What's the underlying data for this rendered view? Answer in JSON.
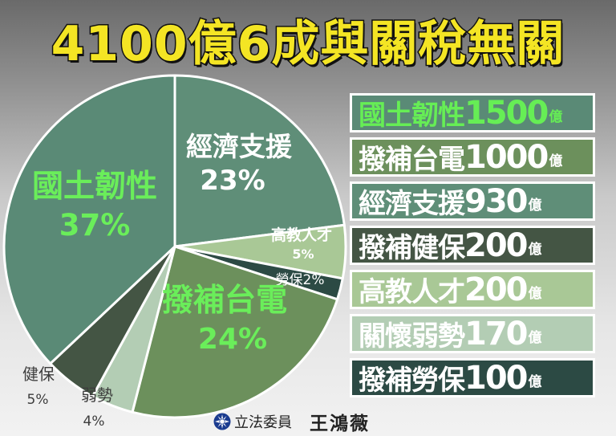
{
  "title": "4100億6成與關稅無關",
  "chart_data": {
    "type": "pie",
    "slices": [
      {
        "name": "經濟支援",
        "percent": 23,
        "percent_label": "23%",
        "color": "#5f8e78"
      },
      {
        "name": "高教人才",
        "percent": 5,
        "percent_label": "5%",
        "color": "#a9c896"
      },
      {
        "name": "勞保",
        "percent": 2,
        "percent_label": "2%",
        "color": "#2c4a44"
      },
      {
        "name": "撥補台電",
        "percent": 24,
        "percent_label": "24%",
        "color": "#6c905c"
      },
      {
        "name": "弱勢",
        "percent": 4,
        "percent_label": "4%",
        "color": "#b3cdb4"
      },
      {
        "name": "健保",
        "percent": 5,
        "percent_label": "5%",
        "color": "#445544"
      },
      {
        "name": "國土韌性",
        "percent": 37,
        "percent_label": "37%",
        "color": "#5a8a76"
      }
    ]
  },
  "legend": [
    {
      "name": "國土韌性",
      "value": "1500",
      "unit": "億",
      "bg": "#5a8a76",
      "text_color": "#66ee55"
    },
    {
      "name": "撥補台電",
      "value": "1000",
      "unit": "億",
      "bg": "#6c905c",
      "text_color": "#ffffff"
    },
    {
      "name": "經濟支援",
      "value": "930",
      "unit": "億",
      "bg": "#5f8e78",
      "text_color": "#ffffff"
    },
    {
      "name": "撥補健保",
      "value": "200",
      "unit": "億",
      "bg": "#445544",
      "text_color": "#ffffff"
    },
    {
      "name": "高教人才",
      "value": "200",
      "unit": "億",
      "bg": "#a9c896",
      "text_color": "#ffffff"
    },
    {
      "name": "關懷弱勢",
      "value": "170",
      "unit": "億",
      "bg": "#b3cdb4",
      "text_color": "#ffffff"
    },
    {
      "name": "撥補勞保",
      "value": "100",
      "unit": "億",
      "bg": "#2c4a44",
      "text_color": "#ffffff"
    }
  ],
  "footer": {
    "org": "立法委員",
    "name": "王鴻薇"
  }
}
